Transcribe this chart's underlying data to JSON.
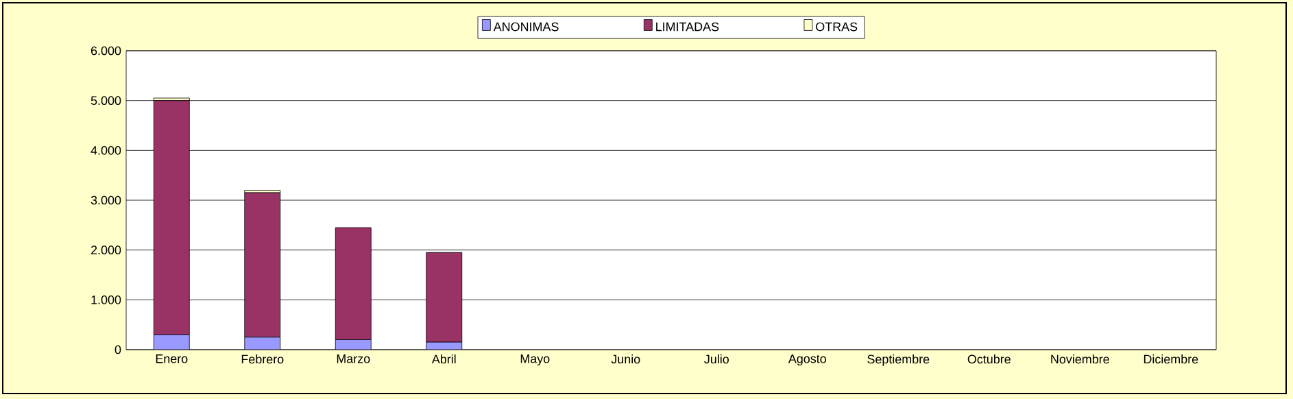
{
  "chart_data": {
    "type": "bar",
    "stacked": true,
    "categories": [
      "Enero",
      "Febrero",
      "Marzo",
      "Abril",
      "Mayo",
      "Junio",
      "Julio",
      "Agosto",
      "Septiembre",
      "Octubre",
      "Noviembre",
      "Diciembre"
    ],
    "series": [
      {
        "name": "ANONIMAS",
        "color": "#9999ff",
        "values": [
          300,
          250,
          200,
          150,
          0,
          0,
          0,
          0,
          0,
          0,
          0,
          0
        ]
      },
      {
        "name": "LIMITADAS",
        "color": "#993366",
        "values": [
          4700,
          2900,
          2250,
          1800,
          0,
          0,
          0,
          0,
          0,
          0,
          0,
          0
        ]
      },
      {
        "name": "OTRAS",
        "color": "#ffffcc",
        "values": [
          50,
          50,
          0,
          0,
          0,
          0,
          0,
          0,
          0,
          0,
          0,
          0
        ]
      }
    ],
    "ylim": [
      0,
      6000
    ],
    "yticks": [
      {
        "value": 0,
        "label": "0"
      },
      {
        "value": 1000,
        "label": "1.000"
      },
      {
        "value": 2000,
        "label": "2.000"
      },
      {
        "value": 3000,
        "label": "3.000"
      },
      {
        "value": 4000,
        "label": "4.000"
      },
      {
        "value": 5000,
        "label": "5.000"
      },
      {
        "value": 6000,
        "label": "6.000"
      }
    ],
    "grid": "y",
    "legend": "top"
  }
}
